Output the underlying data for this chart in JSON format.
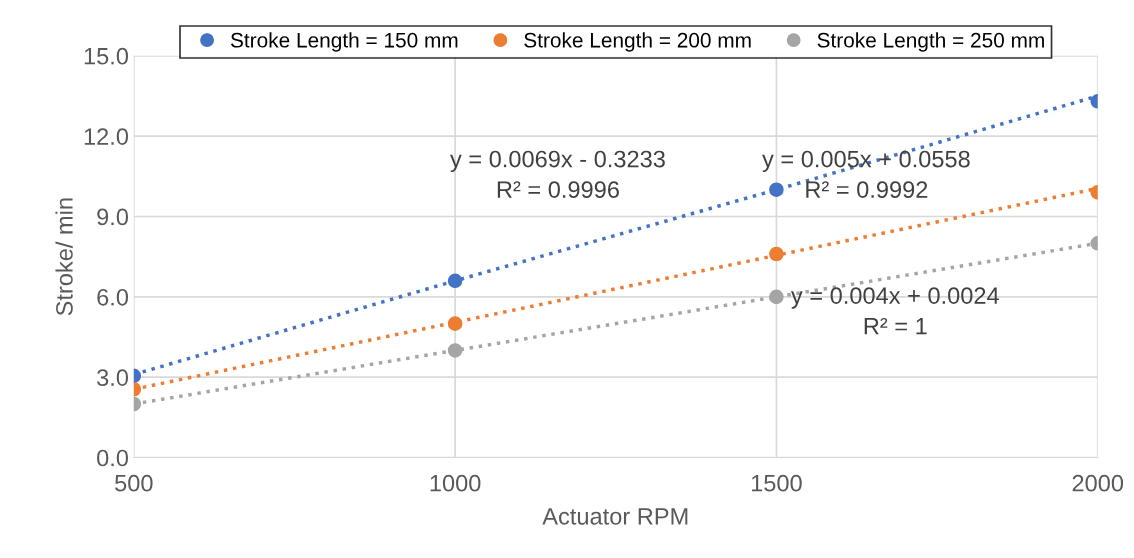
{
  "chart_data": {
    "type": "scatter",
    "xlabel": "Actuator RPM",
    "ylabel": "Stroke/ min",
    "x": [
      500,
      1000,
      1500,
      2000
    ],
    "series": [
      {
        "name": "Stroke Length = 150 mm",
        "color": "#4472c4",
        "values": [
          3.05,
          6.6,
          10.0,
          13.3
        ],
        "marker": "circle"
      },
      {
        "name": "Stroke Length = 200 mm",
        "color": "#ed7d31",
        "values": [
          2.55,
          5.0,
          7.6,
          9.9
        ],
        "marker": "circle"
      },
      {
        "name": "Stroke Length = 250 mm",
        "color": "#a5a5a5",
        "values": [
          2.0,
          4.0,
          6.0,
          8.0
        ],
        "marker": "circle"
      },
      {
        "type": "line",
        "color": "#4472c4",
        "values": [
          3.1,
          6.6,
          10.0,
          13.5
        ],
        "line_style": "dotted"
      },
      {
        "type": "line",
        "color": "#ed7d31",
        "values": [
          2.55,
          5.05,
          7.55,
          10.05
        ],
        "line_style": "dotted"
      },
      {
        "type": "line",
        "color": "#a5a5a5",
        "values": [
          2.0,
          4.0,
          6.0,
          8.0
        ],
        "line_style": "dotted"
      }
    ],
    "annotations": [
      "y = 0.0069x - 0.3233\nR² = 0.9996",
      "y = 0.005x + 0.0558\nR² = 0.9992",
      "y = 0.004x + 0.0024\nR² = 1"
    ],
    "xlim": [
      500,
      2000
    ],
    "xticks": [
      500,
      1000,
      1500,
      2000
    ],
    "ylim": [
      0,
      15
    ],
    "yticks": [
      {
        "value": 0,
        "label": "0.0"
      },
      {
        "value": 3,
        "label": "3.0"
      },
      {
        "value": 6,
        "label": "6.0"
      },
      {
        "value": 9,
        "label": "9.0"
      },
      {
        "value": 12,
        "label": "12.0"
      },
      {
        "value": 15,
        "label": "15.0"
      }
    ],
    "grid": true,
    "legend": "top"
  }
}
